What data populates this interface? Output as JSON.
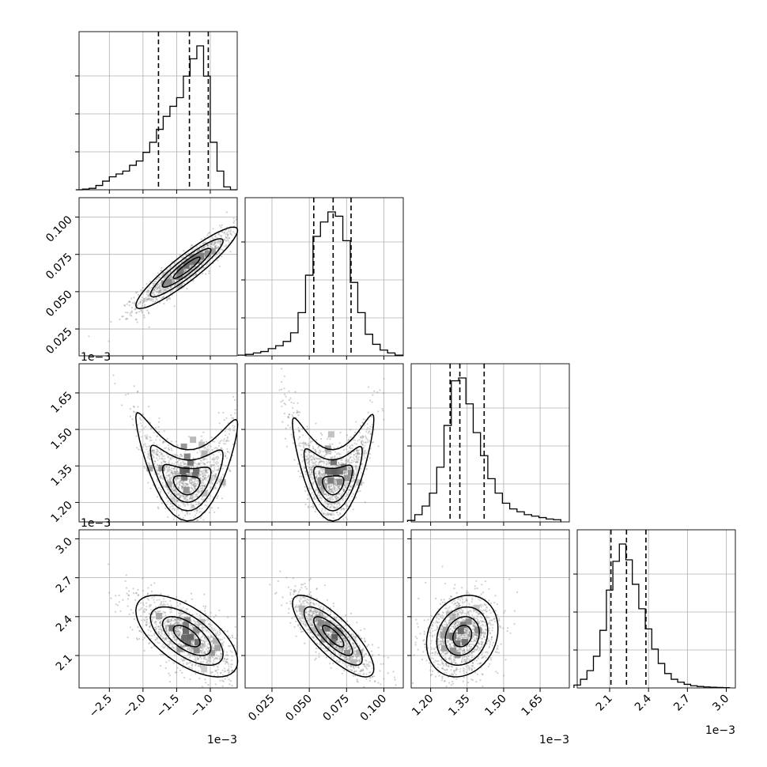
{
  "chart_data": {
    "type": "corner",
    "grid": true,
    "params": [
      {
        "range": [
          -2.95,
          -0.6
        ],
        "ticks": [
          -2.5,
          -2.0,
          -1.5,
          -1.0
        ],
        "tick_labels": [
          "−2.5",
          "−2.0",
          "−1.5",
          "−1.0"
        ],
        "offset_label": "1e−3"
      },
      {
        "range": [
          0.007,
          0.113
        ],
        "ticks": [
          0.025,
          0.05,
          0.075,
          0.1
        ],
        "tick_labels": [
          "0.025",
          "0.050",
          "0.075",
          "0.100"
        ],
        "offset_label": "1e−3"
      },
      {
        "range": [
          1.12,
          1.77
        ],
        "ticks": [
          1.2,
          1.35,
          1.5,
          1.65
        ],
        "tick_labels": [
          "1.20",
          "1.35",
          "1.50",
          "1.65"
        ],
        "offset_label": "1e−3"
      },
      {
        "range": [
          1.85,
          3.07
        ],
        "ticks": [
          2.1,
          2.4,
          2.7,
          3.0
        ],
        "tick_labels": [
          "2.1",
          "2.4",
          "2.7",
          "3.0"
        ],
        "offset_label": "1e−3"
      }
    ],
    "histograms": [
      {
        "quantiles": [
          -1.77,
          -1.31,
          -1.03
        ],
        "bins": [
          [
            -2.95,
            0
          ],
          [
            -2.85,
            0.005
          ],
          [
            -2.75,
            0.01
          ],
          [
            -2.65,
            0.03
          ],
          [
            -2.55,
            0.06
          ],
          [
            -2.45,
            0.09
          ],
          [
            -2.35,
            0.11
          ],
          [
            -2.25,
            0.13
          ],
          [
            -2.15,
            0.17
          ],
          [
            -2.05,
            0.2
          ],
          [
            -1.95,
            0.26
          ],
          [
            -1.85,
            0.33
          ],
          [
            -1.75,
            0.42
          ],
          [
            -1.65,
            0.51
          ],
          [
            -1.55,
            0.58
          ],
          [
            -1.45,
            0.64
          ],
          [
            -1.35,
            0.79
          ],
          [
            -1.25,
            0.91
          ],
          [
            -1.15,
            1.0
          ],
          [
            -1.05,
            0.79
          ],
          [
            -0.95,
            0.33
          ],
          [
            -0.85,
            0.13
          ],
          [
            -0.75,
            0.02
          ],
          [
            -0.65,
            0
          ]
        ]
      },
      {
        "quantiles": [
          0.053,
          0.066,
          0.078
        ],
        "bins": [
          [
            0.005,
            0.005
          ],
          [
            0.01,
            0.01
          ],
          [
            0.015,
            0.02
          ],
          [
            0.02,
            0.03
          ],
          [
            0.025,
            0.05
          ],
          [
            0.03,
            0.07
          ],
          [
            0.035,
            0.1
          ],
          [
            0.04,
            0.16
          ],
          [
            0.045,
            0.3
          ],
          [
            0.05,
            0.56
          ],
          [
            0.055,
            0.83
          ],
          [
            0.06,
            0.93
          ],
          [
            0.065,
            1.0
          ],
          [
            0.07,
            0.97
          ],
          [
            0.075,
            0.8
          ],
          [
            0.08,
            0.51
          ],
          [
            0.085,
            0.3
          ],
          [
            0.09,
            0.15
          ],
          [
            0.095,
            0.08
          ],
          [
            0.1,
            0.04
          ],
          [
            0.105,
            0.02
          ],
          [
            0.11,
            0.005
          ]
        ]
      },
      {
        "quantiles": [
          1.28,
          1.32,
          1.42
        ],
        "bins": [
          [
            1.12,
            0.01
          ],
          [
            1.15,
            0.05
          ],
          [
            1.18,
            0.11
          ],
          [
            1.21,
            0.2
          ],
          [
            1.24,
            0.38
          ],
          [
            1.27,
            0.67
          ],
          [
            1.3,
            0.98
          ],
          [
            1.33,
            1.0
          ],
          [
            1.36,
            0.82
          ],
          [
            1.39,
            0.62
          ],
          [
            1.42,
            0.46
          ],
          [
            1.45,
            0.3
          ],
          [
            1.48,
            0.2
          ],
          [
            1.51,
            0.13
          ],
          [
            1.54,
            0.09
          ],
          [
            1.57,
            0.07
          ],
          [
            1.6,
            0.05
          ],
          [
            1.63,
            0.04
          ],
          [
            1.66,
            0.03
          ],
          [
            1.69,
            0.02
          ],
          [
            1.72,
            0.015
          ]
        ]
      },
      {
        "quantiles": [
          2.11,
          2.23,
          2.38
        ],
        "bins": [
          [
            1.85,
            0.02
          ],
          [
            1.9,
            0.06
          ],
          [
            1.95,
            0.12
          ],
          [
            2.0,
            0.22
          ],
          [
            2.05,
            0.4
          ],
          [
            2.1,
            0.68
          ],
          [
            2.15,
            0.88
          ],
          [
            2.2,
            1.0
          ],
          [
            2.25,
            0.89
          ],
          [
            2.3,
            0.72
          ],
          [
            2.35,
            0.55
          ],
          [
            2.4,
            0.41
          ],
          [
            2.45,
            0.27
          ],
          [
            2.5,
            0.17
          ],
          [
            2.55,
            0.1
          ],
          [
            2.6,
            0.06
          ],
          [
            2.65,
            0.04
          ],
          [
            2.7,
            0.025
          ],
          [
            2.75,
            0.015
          ],
          [
            2.8,
            0.01
          ],
          [
            2.85,
            0.007
          ],
          [
            2.9,
            0.005
          ],
          [
            2.95,
            0.003
          ],
          [
            3.0,
            0.002
          ]
        ]
      }
    ],
    "correlations": {
      "1,0": 0.92,
      "2,0": -0.1,
      "2,1": 0.05,
      "3,0": -0.62,
      "3,1": -0.8,
      "3,2": 0.18
    },
    "means": [
      -1.35,
      0.066,
      1.33,
      2.25
    ],
    "sds": [
      0.36,
      0.013,
      0.07,
      0.15
    ]
  }
}
